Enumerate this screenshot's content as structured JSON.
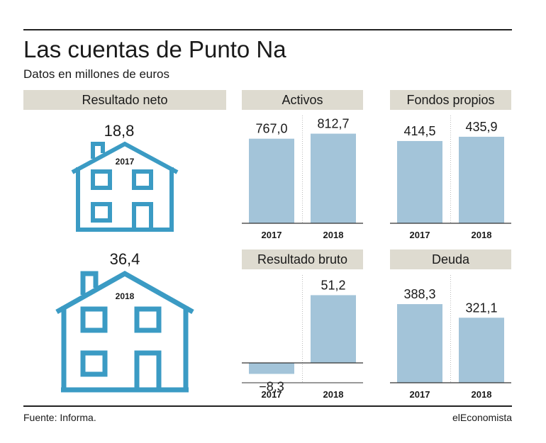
{
  "title": "Las cuentas de Punto Na",
  "subtitle": "Datos en millones de euros",
  "source": "Fuente: Informa.",
  "brand": "elEconomista",
  "colors": {
    "bar": "#a3c4d9",
    "house": "#3b9bc4",
    "header_bg": "#dedbd0"
  },
  "resultado_neto": {
    "header": "Resultado neto",
    "items": [
      {
        "year": "2017",
        "value": "18,8"
      },
      {
        "year": "2018",
        "value": "36,4"
      }
    ]
  },
  "chart_data": [
    {
      "type": "bar",
      "title": "Activos",
      "categories": [
        "2017",
        "2018"
      ],
      "values": [
        767.0,
        812.7
      ],
      "labels": [
        "767,0",
        "812,7"
      ],
      "ylim": [
        0,
        900
      ]
    },
    {
      "type": "bar",
      "title": "Fondos propios",
      "categories": [
        "2017",
        "2018"
      ],
      "values": [
        414.5,
        435.9
      ],
      "labels": [
        "414,5",
        "435,9"
      ],
      "ylim": [
        0,
        500
      ]
    },
    {
      "type": "bar",
      "title": "Resultado bruto",
      "categories": [
        "2017",
        "2018"
      ],
      "values": [
        -8.3,
        51.2
      ],
      "labels": [
        "−8,3",
        "51,2"
      ],
      "ylim": [
        -15,
        60
      ]
    },
    {
      "type": "bar",
      "title": "Deuda",
      "categories": [
        "2017",
        "2018"
      ],
      "values": [
        388.3,
        321.1
      ],
      "labels": [
        "388,3",
        "321,1"
      ],
      "ylim": [
        0,
        490
      ]
    }
  ]
}
